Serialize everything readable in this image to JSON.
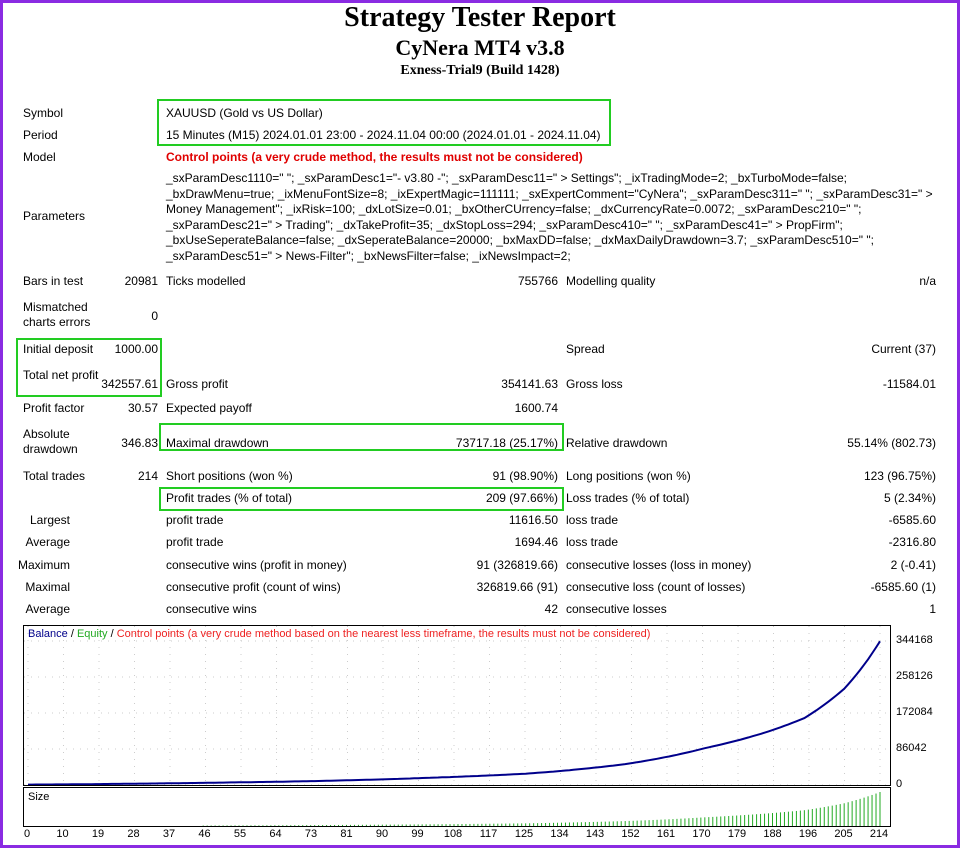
{
  "header": {
    "title": "Strategy Tester Report",
    "subtitle": "CyNera MT4 v3.8",
    "build": "Exness-Trial9 (Build 1428)"
  },
  "info": {
    "symbol_label": "Symbol",
    "symbol": "XAUUSD (Gold vs US Dollar)",
    "period_label": "Period",
    "period": "15 Minutes (M15) 2024.01.01 23:00 - 2024.11.04 00:00 (2024.01.01 - 2024.11.04)",
    "model_label": "Model",
    "model": "Control points (a very crude method, the results must not be considered)",
    "parameters_label": "Parameters",
    "parameters": "_sxParamDesc1110=\" \"; _sxParamDesc1=\"- v3.80 -\"; _sxParamDesc11=\" > Settings\"; _ixTradingMode=2; _bxTurboMode=false; _bxDrawMenu=true; _ixMenuFontSize=8; _ixExpertMagic=111111; _sxExpertComment=\"CyNera\"; _sxParamDesc311=\" \"; _sxParamDesc31=\" > Money Management\"; _ixRisk=100; _dxLotSize=0.01; _bxOtherCUrrency=false; _dxCurrencyRate=0.0072; _sxParamDesc210=\" \"; _sxParamDesc21=\" > Trading\"; _dxTakeProfit=35; _dxStopLoss=294; _sxParamDesc410=\" \"; _sxParamDesc41=\" > PropFirm\"; _bxUseSeperateBalance=false; _dxSeperateBalance=20000; _bxMaxDD=false; _dxMaxDailyDrawdown=3.7; _sxParamDesc510=\" \"; _sxParamDesc51=\" > News-Filter\"; _bxNewsFilter=false; _ixNewsImpact=2;"
  },
  "stats": [
    {
      "top": 271,
      "cells": [
        "Bars in test",
        "20981",
        "Ticks modelled",
        "755766",
        "Modelling quality",
        "n/a"
      ]
    },
    {
      "top": 300,
      "two": true,
      "cells": [
        "Mismatched charts errors",
        "0",
        "",
        "",
        "",
        ""
      ]
    },
    {
      "top": 339,
      "cells": [
        "Initial deposit",
        "1000.00",
        "",
        "",
        "Spread",
        "Current (37)"
      ]
    },
    {
      "top": 368,
      "two": true,
      "cells": [
        "Total net profit",
        "342557.61",
        "Gross profit",
        "354141.63",
        "Gross loss",
        "-11584.01"
      ]
    },
    {
      "top": 398,
      "cells": [
        "Profit factor",
        "30.57",
        "Expected payoff",
        "1600.74",
        "",
        ""
      ]
    },
    {
      "top": 427,
      "two": true,
      "cells": [
        "Absolute drawdown",
        "346.83",
        "Maximal drawdown",
        "73717.18 (25.17%)",
        "Relative drawdown",
        "55.14% (802.73)"
      ]
    },
    {
      "top": 466,
      "cells": [
        "Total trades",
        "214",
        "Short positions (won %)",
        "91 (98.90%)",
        "Long positions (won %)",
        "123 (96.75%)"
      ]
    },
    {
      "top": 488,
      "cells": [
        "",
        "",
        "Profit trades (% of total)",
        "209 (97.66%)",
        "Loss trades (% of total)",
        "5 (2.34%)"
      ]
    },
    {
      "top": 510,
      "right": true,
      "cells": [
        "Largest",
        "",
        "profit trade",
        "11616.50",
        "loss trade",
        "-6585.60"
      ]
    },
    {
      "top": 532,
      "right": true,
      "cells": [
        "Average",
        "",
        "profit trade",
        "1694.46",
        "loss trade",
        "-2316.80"
      ]
    },
    {
      "top": 555,
      "right": true,
      "cells": [
        "Maximum",
        "",
        "consecutive wins (profit in money)",
        "91 (326819.66)",
        "consecutive losses (loss in money)",
        "2 (-0.41)"
      ]
    },
    {
      "top": 577,
      "right": true,
      "cells": [
        "Maximal",
        "",
        "consecutive profit (count of wins)",
        "326819.66 (91)",
        "consecutive loss (count of losses)",
        "-6585.60 (1)"
      ]
    },
    {
      "top": 599,
      "right": true,
      "cells": [
        "Average",
        "",
        "consecutive wins",
        "42",
        "consecutive losses",
        "1"
      ]
    }
  ],
  "chart_data": {
    "type": "line",
    "legend": {
      "balance": "Balance",
      "sep1": " / ",
      "equity": "Equity",
      "sep2": " / ",
      "note": "Control points (a very crude method based on the nearest less timeframe, the results must not be considered)"
    },
    "colors": {
      "balance": "#00008b",
      "equity": "#22aa22",
      "note": "#ee2222",
      "size": "#22aa22"
    },
    "x": [
      0,
      25,
      50,
      75,
      100,
      125,
      150,
      170,
      185,
      195,
      205,
      214
    ],
    "balance": [
      1000,
      3000,
      6000,
      10000,
      17000,
      27000,
      50000,
      88000,
      125000,
      160000,
      230000,
      343558
    ],
    "xlim": [
      0,
      214
    ],
    "ylim": [
      0,
      344168
    ],
    "yticks": [
      "344168",
      "258126",
      "172084",
      "86042",
      "0"
    ],
    "xticks": [
      "0",
      "10",
      "19",
      "28",
      "37",
      "46",
      "55",
      "64",
      "73",
      "81",
      "90",
      "99",
      "108",
      "117",
      "125",
      "134",
      "143",
      "152",
      "161",
      "170",
      "179",
      "188",
      "196",
      "205",
      "214"
    ],
    "size_label": "Size"
  }
}
